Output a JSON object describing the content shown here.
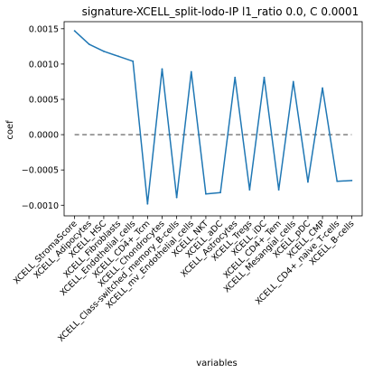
{
  "chart_data": {
    "type": "line",
    "title": "signature-XCELL_split-lodo-IP l1_ratio 0.0, C 0.0001",
    "xlabel": "variables",
    "ylabel": "coef",
    "ylim": [
      -0.00115,
      0.0016
    ],
    "yticks": [
      -0.001,
      -0.0005,
      0.0,
      0.0005,
      0.001,
      0.0015
    ],
    "ytick_labels": [
      "−0.0010",
      "−0.0005",
      "0.0000",
      "0.0005",
      "0.0010",
      "0.0015"
    ],
    "categories": [
      "XCELL_StromaScore",
      "XCELL_Adipocytes",
      "XCELL_HSC",
      "XCELL_Fibroblasts",
      "XCELL_Endothelial_cells",
      "XCELL_CD4+_Tcm",
      "XCELL_Chondrocytes",
      "XCELL_Class-switched_memory_B-cells",
      "XCELL_mv_Endothelial_cells",
      "XCELL_NKT",
      "XCELL_aDC",
      "XCELL_Astrocytes",
      "XCELL_Tregs",
      "XCELL_iDC",
      "XCELL_CD4+_Tem",
      "XCELL_Mesangial_cells",
      "XCELL_pDC",
      "XCELL_CMP",
      "XCELL_CD4+_naive_T-cells",
      "XCELL_B-cells"
    ],
    "visible_tick_labels": [
      "XCELL_StromaScore",
      "XCELL_Adipocytes",
      "XCELL_HSC",
      "XCELL_Fibroblasts",
      "XCELL_Endothelial_cells",
      "XCELL_CD4+_Tcm",
      "XCELL_Chondrocytes",
      "XCELL_Class-switched_memory_B-cells",
      "XCELL_mv_Endothelial_cells",
      "XCELL_NKT",
      "XCELL_aDC",
      "XCELL_Astrocytes",
      "XCELL_Tregs",
      "XCELL_iDC",
      "XCELL_CD4+_Tem",
      "XCELL_Mesangial_cells",
      "XCELL_pDC",
      "XCELL_CMP",
      "XCELL_CD4+_naive_T-cells",
      "XCELL_B-cells"
    ],
    "series": [
      {
        "values": [
          0.00147,
          0.00128,
          0.00118,
          0.00111,
          0.00104,
          -0.00098,
          0.00093,
          -0.00089,
          0.00089,
          -0.00084,
          -0.00082,
          0.00081,
          -0.00078,
          0.00081,
          -0.00078,
          0.00075,
          -0.00067,
          0.00066,
          -0.00066,
          -0.00065
        ],
        "color": "#1f77b4"
      }
    ],
    "reference_line": {
      "y": 0.0,
      "style": "dashed",
      "color": "#808080"
    },
    "grid": false,
    "legend": "none"
  }
}
